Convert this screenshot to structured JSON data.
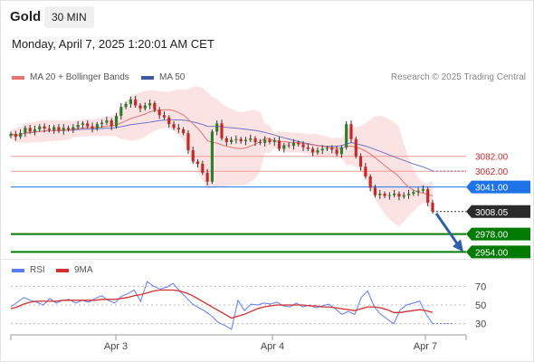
{
  "header": {
    "symbol": "Gold",
    "timeframe": "30 MIN",
    "timestamp": "Monday, April 7, 2025 1:20:01 AM CET"
  },
  "legend": {
    "ma20": "MA 20 + Bollinger Bands",
    "ma50": "MA 50",
    "rsi": "RSI",
    "rsi_ma": "9MA",
    "credit": "Research © 2025 Trading Central"
  },
  "colors": {
    "bullish": "#2e7d32",
    "bearish": "#c62828",
    "ma20": "#e57373",
    "ma50": "#3f51b5",
    "bollinger": "#fbdcdc",
    "resistance": "#ef9a9a",
    "pivot": "#1e73e8",
    "support": "#007a00",
    "rsi": "#5c7cfa",
    "rsi_ma": "#d32f2f",
    "arrow": "#2f5fa8"
  },
  "chart_data": [
    {
      "type": "candlestick",
      "title": "Gold 30 MIN",
      "x_tick_labels": [
        "Apr 3",
        "Apr 4",
        "Apr 7"
      ],
      "ylim": [
        2940,
        3170
      ],
      "levels": [
        {
          "label": "3082.00",
          "value": 3082,
          "kind": "resistance"
        },
        {
          "label": "3062.00",
          "value": 3062,
          "kind": "resistance"
        },
        {
          "label": "3041.00",
          "value": 3041,
          "kind": "pivot"
        },
        {
          "label": "3008.05",
          "value": 3008.05,
          "kind": "last-price"
        },
        {
          "label": "2978.00",
          "value": 2978,
          "kind": "support"
        },
        {
          "label": "2954.00",
          "value": 2954,
          "kind": "support"
        }
      ],
      "close_prices": [
        3112,
        3108,
        3113,
        3120,
        3115,
        3118,
        3122,
        3119,
        3117,
        3121,
        3116,
        3120,
        3118,
        3121,
        3124,
        3126,
        3122,
        3119,
        3125,
        3127,
        3130,
        3122,
        3136,
        3148,
        3152,
        3158,
        3150,
        3146,
        3150,
        3153,
        3144,
        3137,
        3134,
        3125,
        3120,
        3118,
        3113,
        3090,
        3075,
        3072,
        3060,
        3048,
        3115,
        3126,
        3106,
        3101,
        3104,
        3105,
        3102,
        3104,
        3106,
        3101,
        3100,
        3104,
        3101,
        3103,
        3092,
        3097,
        3096,
        3100,
        3098,
        3094,
        3092,
        3087,
        3090,
        3092,
        3093,
        3091,
        3085,
        3094,
        3125,
        3105,
        3082,
        3068,
        3055,
        3040,
        3030,
        3032,
        3029,
        3030,
        3032,
        3028,
        3030,
        3032,
        3034,
        3036,
        3038,
        3020,
        3008
      ]
    },
    {
      "type": "line",
      "title": "RSI",
      "ylim": [
        20,
        80
      ],
      "y_ticks": [
        30,
        50,
        70
      ],
      "series": [
        {
          "name": "RSI",
          "values": [
            48,
            53,
            58,
            55,
            53,
            50,
            57,
            52,
            55,
            56,
            52,
            55,
            53,
            57,
            60,
            55,
            52,
            59,
            62,
            66,
            54,
            75,
            70,
            67,
            69,
            73,
            65,
            58,
            51,
            47,
            43,
            38,
            31,
            28,
            24,
            55,
            44,
            51,
            50,
            52,
            51,
            53,
            49,
            48,
            52,
            48,
            50,
            47,
            49,
            51,
            46,
            40,
            43,
            40,
            58,
            65,
            48,
            40,
            35,
            30,
            45,
            50,
            52,
            54,
            40,
            30
          ]
        },
        {
          "name": "9MA",
          "values": [
            46,
            48,
            51,
            53,
            54,
            54,
            54,
            54,
            55,
            55,
            55,
            55,
            55,
            55,
            56,
            56,
            56,
            57,
            58,
            60,
            61,
            63,
            65,
            66,
            66,
            66,
            65,
            63,
            60,
            56,
            52,
            48,
            44,
            40,
            36,
            38,
            40,
            43,
            46,
            48,
            49,
            50,
            50,
            50,
            50,
            50,
            49,
            49,
            48,
            48,
            47,
            46,
            45,
            44,
            46,
            48,
            48,
            47,
            45,
            42,
            42,
            43,
            44,
            45,
            44,
            42
          ]
        }
      ]
    }
  ]
}
